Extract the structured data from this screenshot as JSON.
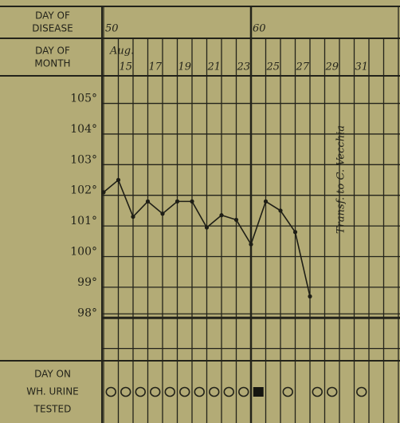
{
  "chart_data": {
    "type": "line",
    "row_labels": {
      "disease": [
        "DAY OF",
        "DISEASE"
      ],
      "month": [
        "DAY OF",
        "MONTH"
      ],
      "urine": [
        "DAY ON",
        "WH. URINE",
        "TESTED"
      ]
    },
    "month_name": "Aug.",
    "annotation": "Transf. to C. Vecchia",
    "x": [
      50,
      51,
      52,
      53,
      54,
      55,
      56,
      57,
      58,
      59,
      60,
      61,
      62,
      63,
      64
    ],
    "series": [
      {
        "color": "#1e1e16",
        "values": [
          102.1,
          102.5,
          101.3,
          101.8,
          101.4,
          101.8,
          101.8,
          100.95,
          101.35,
          101.2,
          100.4,
          101.8,
          101.5,
          100.8,
          98.7
        ]
      }
    ],
    "xlim": [
      50,
      70
    ],
    "xticks": [
      50,
      60,
      70
    ],
    "xminorticks": [
      51,
      52,
      53,
      54,
      55,
      56,
      57,
      58,
      59,
      61,
      62,
      63,
      64,
      65,
      66,
      67,
      68,
      69
    ],
    "thick_x": 60,
    "month_ticks": [
      {
        "value": 51,
        "label": "15"
      },
      {
        "value": 53,
        "label": "17"
      },
      {
        "value": 55,
        "label": "19"
      },
      {
        "value": 57,
        "label": "21"
      },
      {
        "value": 59,
        "label": "23"
      },
      {
        "value": 61,
        "label": "25"
      },
      {
        "value": 63,
        "label": "27"
      },
      {
        "value": 65,
        "label": "29"
      },
      {
        "value": 67,
        "label": "31"
      }
    ],
    "ylim": [
      96.6,
      105.9
    ],
    "yticks": [
      {
        "value": 105,
        "label": "105°"
      },
      {
        "value": 104,
        "label": "104°"
      },
      {
        "value": 103,
        "label": "103°"
      },
      {
        "value": 102,
        "label": "102°"
      },
      {
        "value": 101,
        "label": "101°"
      },
      {
        "value": 100,
        "label": "100°"
      },
      {
        "value": 99,
        "label": "99°"
      },
      {
        "value": 98,
        "label": "98°"
      }
    ],
    "yminorticks": [
      97
    ],
    "thick_y": 98,
    "urine_tested": [
      50,
      51,
      52,
      53,
      54,
      55,
      56,
      57,
      58,
      59,
      62,
      64,
      65,
      67
    ],
    "urine_filled": [
      60
    ],
    "grid": true
  }
}
